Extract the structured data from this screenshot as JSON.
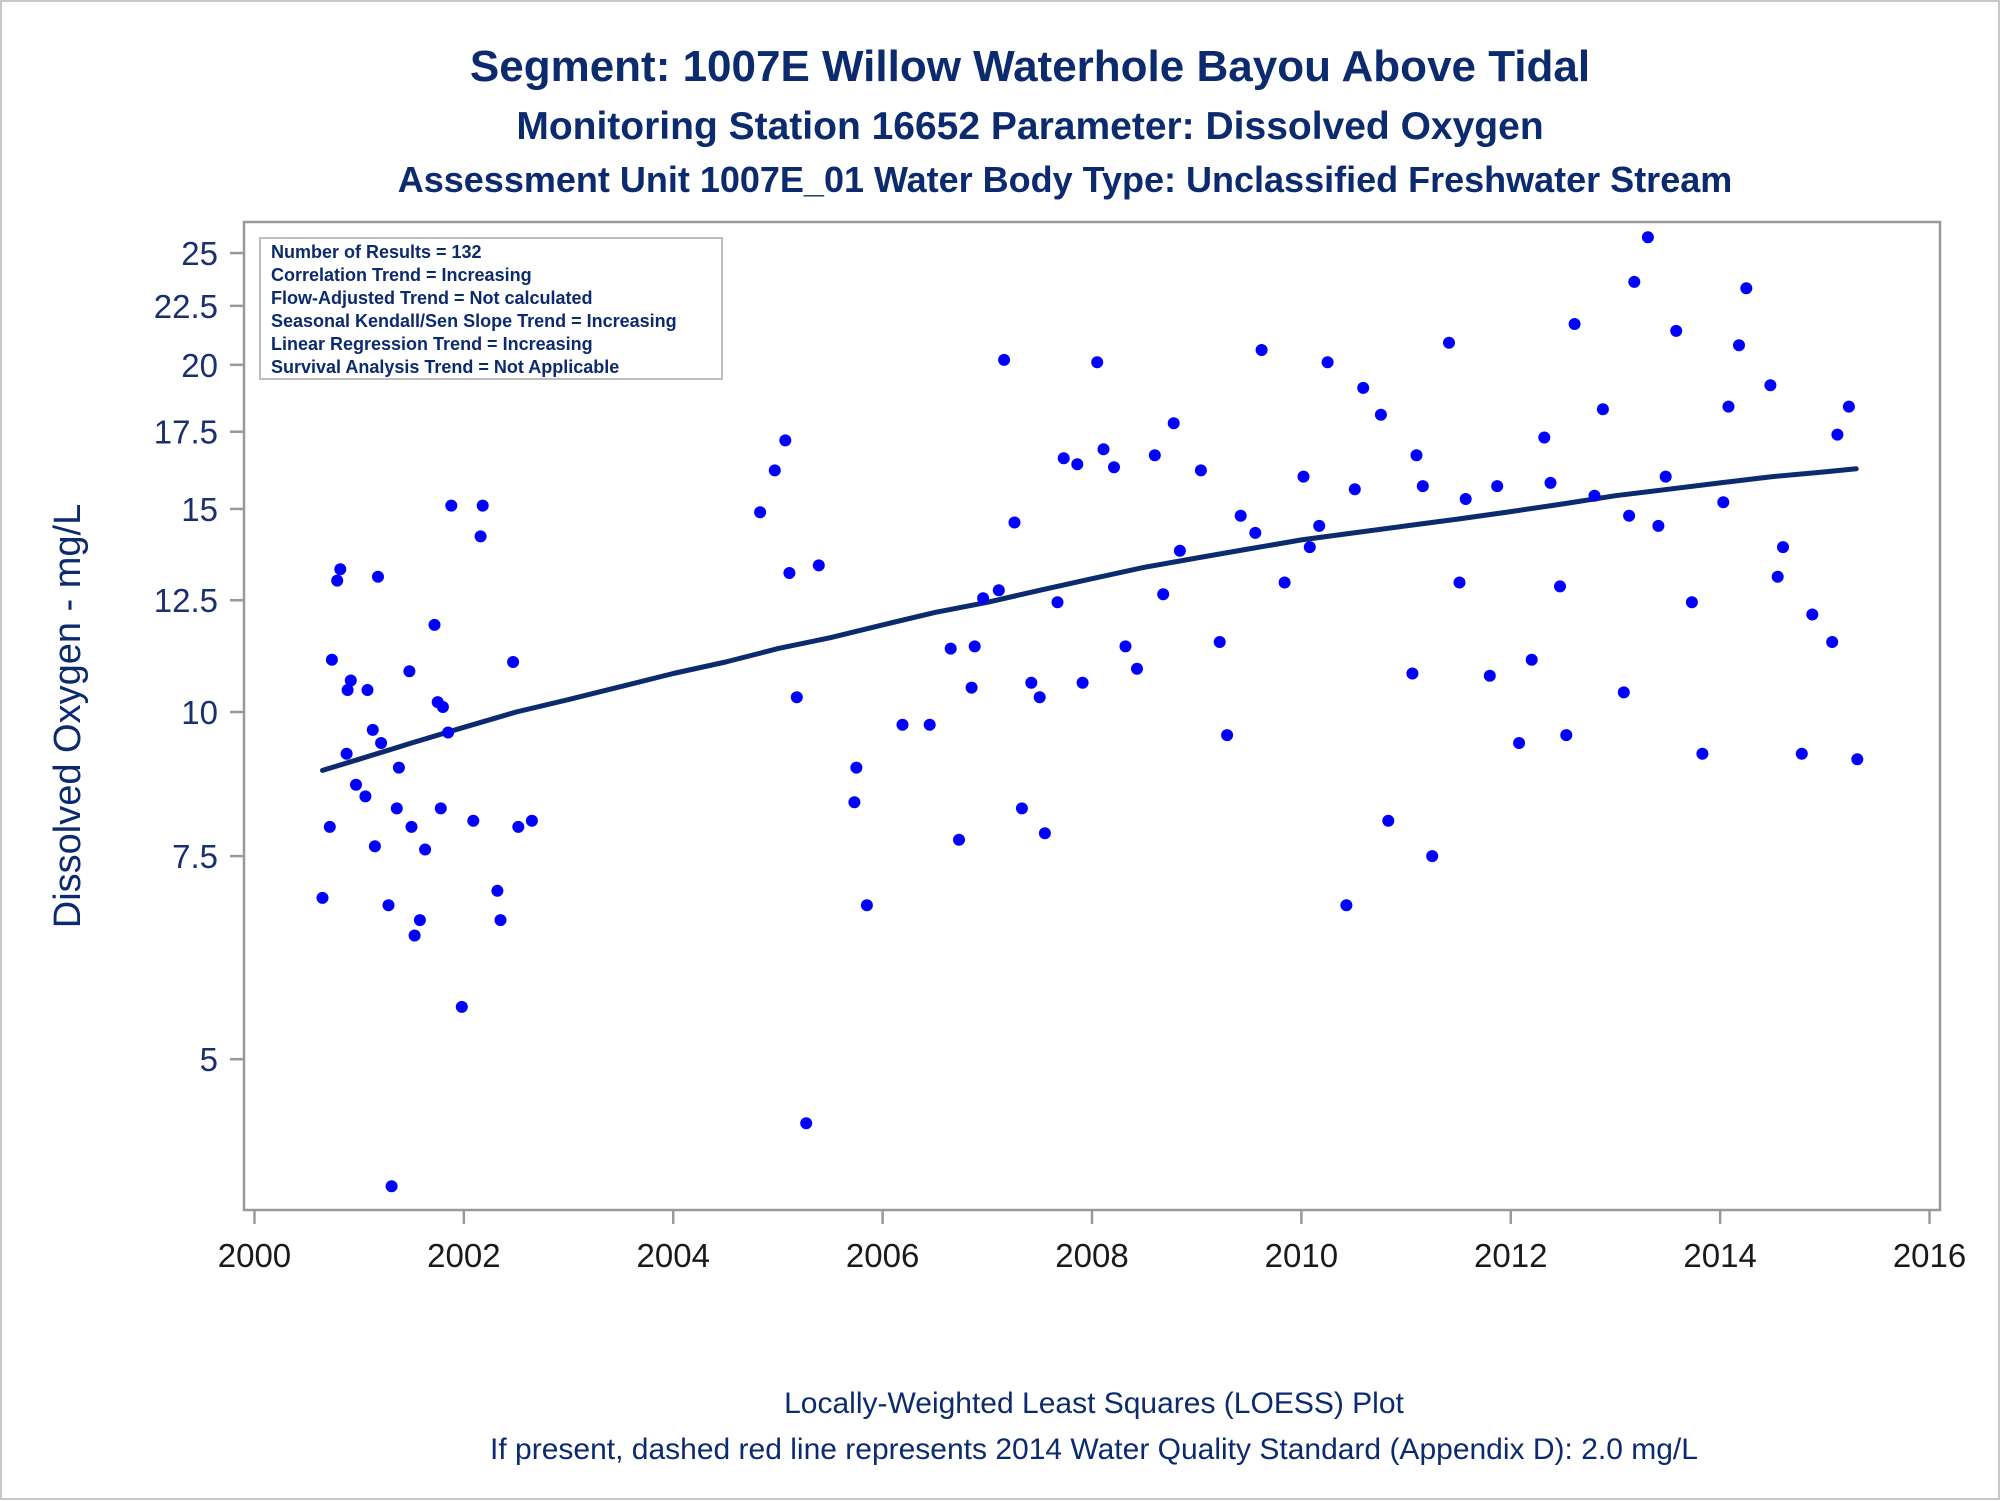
{
  "titles": {
    "line1": "Segment: 1007E  Willow Waterhole Bayou Above Tidal",
    "line2": "Monitoring Station 16652 Parameter: Dissolved Oxygen",
    "line3": "Assessment Unit 1007E_01   Water Body Type: Unclassified Freshwater Stream"
  },
  "stats_box": [
    "Number of Results = 132",
    "Correlation Trend = Increasing",
    "Flow-Adjusted Trend = Not calculated",
    "Seasonal Kendall/Sen Slope Trend = Increasing",
    "Linear Regression Trend = Increasing",
    "Survival Analysis Trend = Not Applicable"
  ],
  "footnotes": {
    "line1": "Locally-Weighted Least Squares (LOESS) Plot",
    "line2": "If present, dashed red line represents 2014 Water Quality Standard (Appendix D): 2.0 mg/L"
  },
  "colors": {
    "points": "#0000ff",
    "trend": "#0c2a6e",
    "text": "#0c2a6e",
    "axis": "#999999"
  },
  "chart_data": {
    "type": "scatter",
    "title": "Segment: 1007E  Willow Waterhole Bayou Above Tidal",
    "xlabel": "",
    "ylabel": "Dissolved Oxygen - mg/L",
    "y_scale": "log",
    "xlim": [
      1999.9,
      2016.1
    ],
    "ylim": [
      3.7,
      26.6
    ],
    "x_ticks": [
      2000,
      2002,
      2004,
      2006,
      2008,
      2010,
      2012,
      2014,
      2016
    ],
    "y_ticks": [
      5,
      7.5,
      10,
      12.5,
      15,
      17.5,
      20,
      22.5,
      25
    ],
    "y_tick_labels": [
      "5",
      "7.5",
      "10",
      "12.5",
      "15",
      "17.5",
      "20",
      "22.5",
      "25"
    ],
    "x_tick_labels": [
      "2000",
      "2002",
      "2004",
      "2006",
      "2008",
      "2010",
      "2012",
      "2014",
      "2016"
    ],
    "legend": "none",
    "grid": false,
    "points": [
      [
        2000.65,
        6.9
      ],
      [
        2000.72,
        7.95
      ],
      [
        2000.74,
        11.1
      ],
      [
        2000.79,
        13.0
      ],
      [
        2000.82,
        13.3
      ],
      [
        2000.88,
        9.2
      ],
      [
        2000.89,
        10.45
      ],
      [
        2000.92,
        10.65
      ],
      [
        2000.97,
        8.65
      ],
      [
        2001.06,
        8.45
      ],
      [
        2001.08,
        10.45
      ],
      [
        2001.13,
        9.65
      ],
      [
        2001.15,
        7.65
      ],
      [
        2001.18,
        13.1
      ],
      [
        2001.21,
        9.4
      ],
      [
        2001.28,
        6.8
      ],
      [
        2001.31,
        3.88
      ],
      [
        2001.36,
        8.25
      ],
      [
        2001.38,
        8.95
      ],
      [
        2001.48,
        10.85
      ],
      [
        2001.5,
        7.95
      ],
      [
        2001.53,
        6.4
      ],
      [
        2001.58,
        6.6
      ],
      [
        2001.63,
        7.6
      ],
      [
        2001.72,
        11.9
      ],
      [
        2001.75,
        10.2
      ],
      [
        2001.78,
        8.25
      ],
      [
        2001.8,
        10.1
      ],
      [
        2001.85,
        9.6
      ],
      [
        2001.88,
        15.1
      ],
      [
        2001.98,
        5.55
      ],
      [
        2002.09,
        8.05
      ],
      [
        2002.16,
        14.2
      ],
      [
        2002.18,
        15.1
      ],
      [
        2002.32,
        7.0
      ],
      [
        2002.35,
        6.6
      ],
      [
        2002.47,
        11.05
      ],
      [
        2002.52,
        7.95
      ],
      [
        2002.65,
        8.05
      ],
      [
        2004.83,
        14.9
      ],
      [
        2004.97,
        16.2
      ],
      [
        2005.07,
        17.2
      ],
      [
        2005.11,
        13.2
      ],
      [
        2005.18,
        10.3
      ],
      [
        2005.27,
        4.4
      ],
      [
        2005.39,
        13.4
      ],
      [
        2005.73,
        8.35
      ],
      [
        2005.75,
        8.95
      ],
      [
        2005.85,
        6.8
      ],
      [
        2006.19,
        9.75
      ],
      [
        2006.45,
        9.75
      ],
      [
        2006.65,
        11.35
      ],
      [
        2006.73,
        7.75
      ],
      [
        2006.85,
        10.5
      ],
      [
        2006.88,
        11.4
      ],
      [
        2006.96,
        12.55
      ],
      [
        2007.11,
        12.75
      ],
      [
        2007.16,
        20.2
      ],
      [
        2007.26,
        14.6
      ],
      [
        2007.33,
        8.25
      ],
      [
        2007.42,
        10.6
      ],
      [
        2007.5,
        10.3
      ],
      [
        2007.55,
        7.85
      ],
      [
        2007.67,
        12.45
      ],
      [
        2007.73,
        16.6
      ],
      [
        2007.86,
        16.4
      ],
      [
        2007.91,
        10.6
      ],
      [
        2008.05,
        20.1
      ],
      [
        2008.11,
        16.9
      ],
      [
        2008.21,
        16.3
      ],
      [
        2008.32,
        11.4
      ],
      [
        2008.43,
        10.9
      ],
      [
        2008.6,
        16.7
      ],
      [
        2008.68,
        12.65
      ],
      [
        2008.78,
        17.8
      ],
      [
        2008.84,
        13.8
      ],
      [
        2009.04,
        16.2
      ],
      [
        2009.22,
        11.5
      ],
      [
        2009.29,
        9.55
      ],
      [
        2009.42,
        14.8
      ],
      [
        2009.56,
        14.3
      ],
      [
        2009.62,
        20.6
      ],
      [
        2009.84,
        12.95
      ],
      [
        2010.02,
        16.0
      ],
      [
        2010.08,
        13.9
      ],
      [
        2010.17,
        14.5
      ],
      [
        2010.25,
        20.1
      ],
      [
        2010.43,
        6.8
      ],
      [
        2010.51,
        15.6
      ],
      [
        2010.59,
        19.1
      ],
      [
        2010.76,
        18.1
      ],
      [
        2010.83,
        8.05
      ],
      [
        2011.06,
        10.8
      ],
      [
        2011.1,
        16.7
      ],
      [
        2011.16,
        15.7
      ],
      [
        2011.25,
        7.5
      ],
      [
        2011.41,
        20.9
      ],
      [
        2011.51,
        12.95
      ],
      [
        2011.57,
        15.3
      ],
      [
        2011.8,
        10.75
      ],
      [
        2011.87,
        15.7
      ],
      [
        2012.08,
        9.4
      ],
      [
        2012.2,
        11.1
      ],
      [
        2012.32,
        17.3
      ],
      [
        2012.38,
        15.8
      ],
      [
        2012.47,
        12.85
      ],
      [
        2012.53,
        9.55
      ],
      [
        2012.61,
        21.7
      ],
      [
        2012.8,
        15.4
      ],
      [
        2012.88,
        18.3
      ],
      [
        2013.08,
        10.4
      ],
      [
        2013.13,
        14.8
      ],
      [
        2013.18,
        23.6
      ],
      [
        2013.31,
        25.8
      ],
      [
        2013.41,
        14.5
      ],
      [
        2013.48,
        16.0
      ],
      [
        2013.58,
        21.4
      ],
      [
        2013.73,
        12.45
      ],
      [
        2013.83,
        9.2
      ],
      [
        2014.03,
        15.2
      ],
      [
        2014.08,
        18.4
      ],
      [
        2014.18,
        20.8
      ],
      [
        2014.25,
        23.3
      ],
      [
        2014.48,
        19.2
      ],
      [
        2014.55,
        13.1
      ],
      [
        2014.6,
        13.9
      ],
      [
        2014.78,
        9.2
      ],
      [
        2014.88,
        12.15
      ],
      [
        2015.07,
        11.5
      ],
      [
        2015.12,
        17.4
      ],
      [
        2015.23,
        18.4
      ],
      [
        2015.31,
        9.1
      ]
    ],
    "trend_line": [
      [
        2000.65,
        8.9
      ],
      [
        2001.0,
        9.1
      ],
      [
        2001.5,
        9.4
      ],
      [
        2002.0,
        9.7
      ],
      [
        2002.5,
        10.0
      ],
      [
        2003.0,
        10.25
      ],
      [
        2003.5,
        10.52
      ],
      [
        2004.0,
        10.8
      ],
      [
        2004.5,
        11.05
      ],
      [
        2005.0,
        11.35
      ],
      [
        2005.5,
        11.6
      ],
      [
        2006.0,
        11.9
      ],
      [
        2006.5,
        12.2
      ],
      [
        2007.0,
        12.45
      ],
      [
        2007.5,
        12.75
      ],
      [
        2008.0,
        13.05
      ],
      [
        2008.5,
        13.35
      ],
      [
        2009.0,
        13.6
      ],
      [
        2009.5,
        13.85
      ],
      [
        2010.0,
        14.1
      ],
      [
        2010.5,
        14.3
      ],
      [
        2011.0,
        14.5
      ],
      [
        2011.5,
        14.7
      ],
      [
        2012.0,
        14.92
      ],
      [
        2012.5,
        15.15
      ],
      [
        2013.0,
        15.4
      ],
      [
        2013.5,
        15.6
      ],
      [
        2014.0,
        15.8
      ],
      [
        2014.5,
        16.0
      ],
      [
        2015.0,
        16.15
      ],
      [
        2015.3,
        16.25
      ]
    ]
  }
}
